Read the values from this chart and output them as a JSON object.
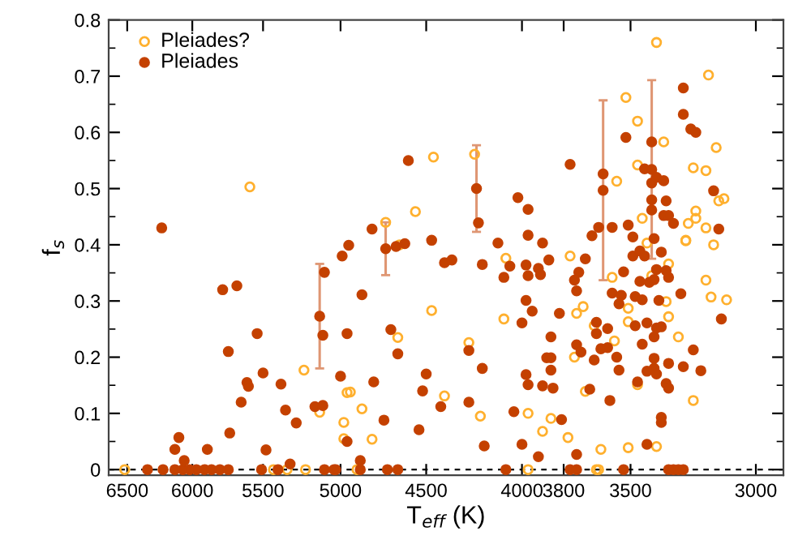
{
  "chart_data": {
    "type": "scatter",
    "xlabel": "T$_{eff}$ (K)",
    "ylabel": "f$_{s}$",
    "log": "x",
    "xlim": [
      6650,
      2900
    ],
    "xticks": [
      6500,
      6000,
      5500,
      5000,
      4500,
      4000,
      3800,
      3500,
      3000
    ],
    "ylim": [
      -0.01,
      0.8
    ],
    "yticks": [
      0,
      0.1,
      0.2,
      0.3,
      0.4,
      0.5,
      0.6,
      0.7,
      0.8
    ],
    "grid": false,
    "legend": "top left",
    "marker": "circle",
    "ref_lines": [
      {
        "axis": "y",
        "value": 0,
        "color": "#000000",
        "line_style": "dashed"
      }
    ],
    "series": [
      {
        "name": "Pleiades?",
        "color": "#ffb02e",
        "x": [
          6520,
          5430,
          5340,
          5220,
          4900,
          3970,
          3650,
          3640,
          5590,
          5230,
          5130,
          4980,
          4980,
          4960,
          4940,
          4870,
          4810,
          4660,
          4650,
          4470,
          4730,
          4560,
          4460,
          4240,
          3520,
          3470,
          3560,
          3470,
          3360,
          3390,
          3180,
          3150,
          3240,
          3190,
          3140,
          3120,
          3230,
          3230,
          3260,
          3450,
          3190,
          3270,
          4080,
          3770,
          4090,
          4270,
          4400,
          4210,
          3970,
          3860,
          3900,
          3780,
          3630,
          3510,
          3390,
          3700,
          3750,
          3740,
          3710,
          3660,
          3570,
          3510,
          3510,
          3470,
          3580,
          3430,
          3410,
          3350,
          3340,
          3300,
          3340,
          3270,
          3160,
          3190,
          3170,
          3110,
          3240
        ],
        "values": [
          0,
          0,
          0,
          0,
          0,
          0,
          0,
          0,
          0.503,
          0.177,
          0.102,
          0.084,
          0.055,
          0.137,
          0.138,
          0.108,
          0.054,
          0.235,
          0.4,
          0.283,
          0.44,
          0.459,
          0.556,
          0.561,
          0.662,
          0.62,
          0.513,
          0.542,
          0.583,
          0.76,
          0.702,
          0.573,
          0.537,
          0.532,
          0.478,
          0.482,
          0.46,
          0.447,
          0.438,
          0.447,
          0.43,
          0.408,
          0.376,
          0.38,
          0.268,
          0.226,
          0.131,
          0.095,
          0.1,
          0.091,
          0.068,
          0.057,
          0.036,
          0.039,
          0.041,
          0.139,
          0.2,
          0.278,
          0.29,
          0.256,
          0.229,
          0.287,
          0.263,
          0.151,
          0.342,
          0.403,
          0.345,
          0.299,
          0.272,
          0.236,
          0.366,
          0.407,
          0.4,
          0.337,
          0.307,
          0.302,
          0.123
        ]
      },
      {
        "name": "Pleiades",
        "color": "#c44100",
        "x": [
          5130,
          4730,
          4230,
          3620,
          3410,
          6340,
          6220,
          6130,
          6070,
          6020,
          5970,
          5910,
          5860,
          5800,
          5740,
          5510,
          5400,
          5100,
          5040,
          5030,
          4880,
          4720,
          4660,
          4080,
          3770,
          3740,
          3530,
          3340,
          3320,
          3300,
          3280,
          5320,
          6230,
          6130,
          6100,
          6060,
          5890,
          5780,
          5740,
          5730,
          5680,
          5650,
          5610,
          5600,
          5540,
          5500,
          5480,
          5380,
          5350,
          5280,
          5110,
          5100,
          5160,
          5110,
          4990,
          4950,
          4960,
          5000,
          4960,
          4880,
          4870,
          4800,
          4740,
          4810,
          4700,
          4660,
          4670,
          4620,
          4540,
          4520,
          4500,
          4470,
          4600,
          4220,
          4020,
          3970,
          3970,
          4120,
          3900,
          3770,
          3620,
          3670,
          3640,
          3580,
          3510,
          3490,
          3520,
          3440,
          3410,
          3410,
          3390,
          3360,
          3410,
          3410,
          3350,
          3360,
          3340,
          3320,
          3400,
          3280,
          3280,
          3250,
          3230,
          3160,
          3140,
          4400,
          4360,
          4200,
          4090,
          4060,
          3980,
          3970,
          3920,
          3910,
          3870,
          3700,
          3730,
          3750,
          3740,
          3490,
          3460,
          3440,
          3370,
          3390,
          3350,
          3340,
          3460,
          3420,
          3400,
          3530,
          3580,
          3540,
          3480,
          3450,
          3550,
          3380,
          3290,
          3980,
          3950,
          4000,
          3820,
          3650,
          3650,
          3600,
          3860,
          3740,
          3720,
          3630,
          3600,
          3880,
          3860,
          3860,
          3660,
          3560,
          3550,
          3480,
          3430,
          3390,
          3370,
          3400,
          3450,
          3400,
          3400,
          3430,
          3390,
          3340,
          3280,
          3210,
          3240,
          3130,
          4200,
          4270,
          4420,
          4270,
          3980,
          3970,
          3900,
          3850,
          3680,
          3590,
          3350,
          3340,
          3470,
          3370,
          3370,
          3430,
          4040,
          3810,
          4190,
          4000,
          3920,
          3740
        ],
        "values": [
          0.273,
          0.393,
          0.5,
          0.497,
          0.534,
          0,
          0,
          0,
          0,
          0,
          0,
          0,
          0,
          0,
          0,
          0,
          0,
          0,
          0,
          0,
          0,
          0,
          0,
          0,
          0,
          0,
          0,
          0,
          0,
          0,
          0,
          0.01,
          0.43,
          0.036,
          0.057,
          0.016,
          0.036,
          0.32,
          0.21,
          0.065,
          0.327,
          0.12,
          0.155,
          0.148,
          0.242,
          0.172,
          0.035,
          0.152,
          0.106,
          0.083,
          0.239,
          0.351,
          0.112,
          0.114,
          0.38,
          0.399,
          0.242,
          0.166,
          0.05,
          0.016,
          0.311,
          0.156,
          0.088,
          0.428,
          0.249,
          0.206,
          0.397,
          0.402,
          0.071,
          0.14,
          0.17,
          0.408,
          0.55,
          0.439,
          0.484,
          0.463,
          0.417,
          0.403,
          0.403,
          0.543,
          0.526,
          0.416,
          0.431,
          0.431,
          0.435,
          0.414,
          0.591,
          0.535,
          0.583,
          0.51,
          0.52,
          0.514,
          0.48,
          0.462,
          0.478,
          0.452,
          0.452,
          0.438,
          0.411,
          0.679,
          0.632,
          0.606,
          0.6,
          0.496,
          0.428,
          0.368,
          0.373,
          0.365,
          0.342,
          0.362,
          0.364,
          0.345,
          0.358,
          0.347,
          0.373,
          0.375,
          0.351,
          0.337,
          0.318,
          0.38,
          0.389,
          0.38,
          0.387,
          0.356,
          0.354,
          0.342,
          0.335,
          0.333,
          0.338,
          0.352,
          0.314,
          0.31,
          0.308,
          0.302,
          0.295,
          0.301,
          0.313,
          0.301,
          0.282,
          0.261,
          0.278,
          0.262,
          0.242,
          0.251,
          0.236,
          0.222,
          0.209,
          0.215,
          0.217,
          0.199,
          0.199,
          0.177,
          0.195,
          0.2,
          0.177,
          0.256,
          0.261,
          0.252,
          0.254,
          0.236,
          0.223,
          0.198,
          0.18,
          0.175,
          0.17,
          0.189,
          0.183,
          0.176,
          0.213,
          0.268,
          0.18,
          0.212,
          0.112,
          0.12,
          0.169,
          0.151,
          0.149,
          0.145,
          0.143,
          0.123,
          0.153,
          0.145,
          0.156,
          0.093,
          0.084,
          0.045,
          0.103,
          0.089,
          0.042,
          0.045,
          0.023,
          0.027
        ],
        "errors": [
          0.093,
          0.047,
          0.077,
          0.16,
          0.159,
          null,
          null,
          null,
          null,
          null,
          null,
          null,
          null,
          null,
          null,
          null,
          null,
          null,
          null,
          null,
          null,
          null,
          null,
          null,
          null,
          null,
          null,
          null,
          null,
          null,
          null,
          null,
          null,
          null,
          null,
          null,
          null,
          null,
          null,
          null,
          null,
          null,
          null,
          null,
          null,
          null,
          null,
          null,
          null,
          null,
          null,
          null,
          null,
          null,
          null,
          null,
          null,
          null,
          null,
          null,
          null,
          null,
          null,
          null,
          null,
          null,
          null,
          null,
          null,
          null,
          null,
          null,
          null,
          null,
          null,
          null,
          null,
          null,
          null,
          null,
          null,
          null,
          null,
          null,
          null,
          null,
          null,
          null,
          null,
          null,
          null,
          null,
          null,
          null,
          null,
          null,
          null,
          null,
          null,
          null,
          null,
          null,
          null,
          null,
          null,
          null,
          null,
          null,
          null,
          null,
          null,
          null,
          null,
          null,
          null,
          null,
          null,
          null,
          null,
          null,
          null,
          null,
          null,
          null,
          null,
          null,
          null,
          null,
          null,
          null,
          null,
          null,
          null,
          null,
          null,
          null,
          null,
          null,
          null,
          null,
          null,
          null,
          null,
          null,
          null,
          null,
          null,
          null,
          null,
          null,
          null,
          null,
          null,
          null,
          null,
          null,
          null,
          null,
          null,
          null,
          null,
          null,
          null,
          null,
          null,
          null,
          null,
          null,
          null,
          null,
          null,
          null,
          null,
          null,
          null,
          null,
          null,
          null,
          null,
          null,
          null,
          null,
          null,
          null,
          null,
          null,
          null,
          null,
          null,
          null,
          null,
          null
        ]
      }
    ]
  }
}
